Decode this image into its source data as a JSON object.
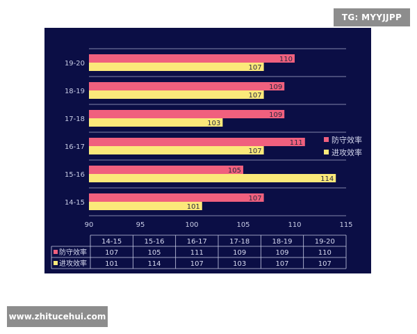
{
  "watermarks": {
    "top_right": "TG: MYYJJPP",
    "bottom_left": "www.zhitucehui.com"
  },
  "colors": {
    "background": "#0b0e45",
    "defense": "#f0607e",
    "offense": "#fbe97a",
    "gridline": "#c9cde6"
  },
  "chart_data": {
    "type": "bar",
    "orientation": "horizontal",
    "categories": [
      "14-15",
      "15-16",
      "16-17",
      "17-18",
      "18-19",
      "19-20"
    ],
    "series": [
      {
        "name": "防守效率",
        "values": [
          107,
          105,
          111,
          109,
          109,
          110
        ]
      },
      {
        "name": "进攻效率",
        "values": [
          101,
          114,
          107,
          103,
          107,
          107
        ]
      }
    ],
    "xlim": [
      90,
      115
    ],
    "xticks": [
      "90",
      "95",
      "100",
      "105",
      "110",
      "115"
    ],
    "legend": "right",
    "data_table": true
  }
}
